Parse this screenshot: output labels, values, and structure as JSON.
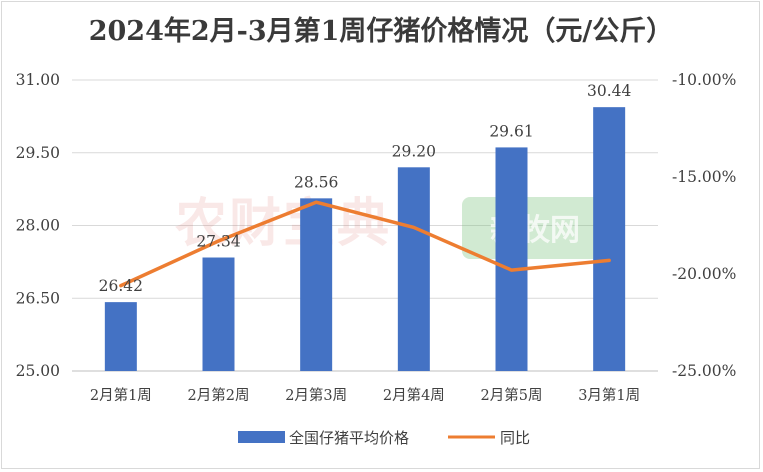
{
  "chart_data": {
    "type": "bar",
    "title": "2024年2月-3月第1周仔猪价格情况（元/公斤）",
    "categories": [
      "2月第1周",
      "2月第2周",
      "2月第3周",
      "2月第4周",
      "2月第5周",
      "3月第1周"
    ],
    "series": [
      {
        "name": "全国仔猪平均价格",
        "type": "bar",
        "axis": "left",
        "color": "#4472c4",
        "values": [
          26.42,
          27.34,
          28.56,
          29.2,
          29.61,
          30.44
        ],
        "value_labels": [
          "26.42",
          "27.34",
          "28.56",
          "29.20",
          "29.61",
          "30.44"
        ]
      },
      {
        "name": "同比",
        "type": "line",
        "axis": "right",
        "color": "#ed7d31",
        "values": [
          -20.6,
          -18.3,
          -16.3,
          -17.6,
          -19.8,
          -19.3
        ]
      }
    ],
    "y_left": {
      "min": 25.0,
      "max": 31.0,
      "ticks": [
        25.0,
        26.5,
        28.0,
        29.5,
        31.0
      ],
      "tick_labels": [
        "25.00",
        "26.50",
        "28.00",
        "29.50",
        "31.00"
      ]
    },
    "y_right": {
      "min": -25.0,
      "max": -10.0,
      "ticks": [
        -25,
        -20,
        -15,
        -10
      ],
      "tick_labels": [
        "-25.00%",
        "-20.00%",
        "-15.00%",
        "-10.00%"
      ]
    },
    "grid": true,
    "legend_position": "bottom"
  },
  "watermarks": {
    "red": "农财宝典",
    "green": "新牧网"
  },
  "colors": {
    "bar": "#4472c4",
    "line": "#ed7d31",
    "grid": "#d9d9d9",
    "watermark_red": "#d9534f",
    "watermark_green": "#7cc47f"
  }
}
